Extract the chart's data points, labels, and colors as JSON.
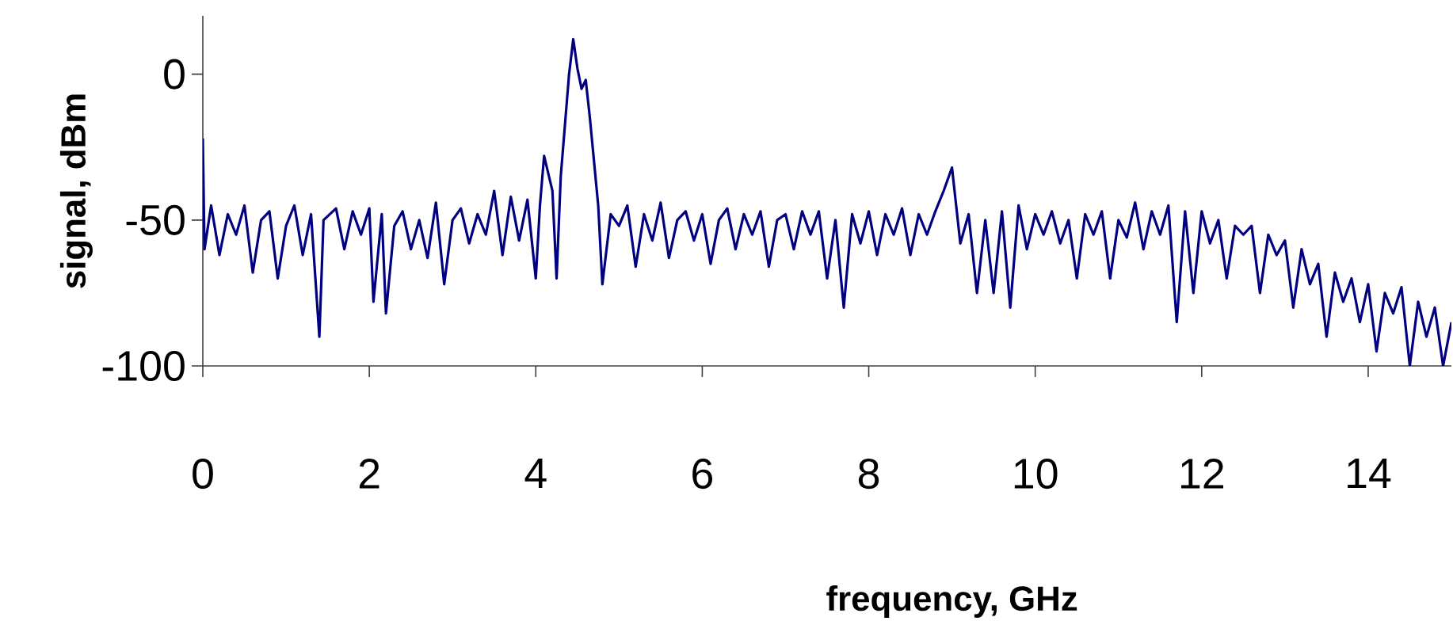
{
  "chart_data": {
    "type": "line",
    "xlabel": "frequency, GHz",
    "ylabel": "signal, dBm",
    "xlim": [
      0,
      15
    ],
    "xticks": [
      0,
      2,
      4,
      6,
      8,
      10,
      12,
      14
    ],
    "ylim": [
      -100,
      20
    ],
    "yticks": [
      -100,
      -50,
      0
    ],
    "marker": "none",
    "line_style": "solid",
    "series": [
      {
        "color": "#000080",
        "x": [
          0,
          0.02,
          0.1,
          0.2,
          0.3,
          0.4,
          0.5,
          0.6,
          0.7,
          0.8,
          0.9,
          1.0,
          1.1,
          1.2,
          1.3,
          1.4,
          1.45,
          1.6,
          1.7,
          1.8,
          1.9,
          2.0,
          2.05,
          2.15,
          2.2,
          2.3,
          2.4,
          2.5,
          2.6,
          2.7,
          2.8,
          2.9,
          3.0,
          3.1,
          3.2,
          3.3,
          3.4,
          3.5,
          3.6,
          3.7,
          3.8,
          3.9,
          4.0,
          4.05,
          4.1,
          4.2,
          4.25,
          4.3,
          4.4,
          4.45,
          4.5,
          4.55,
          4.6,
          4.65,
          4.7,
          4.75,
          4.8,
          4.9,
          5.0,
          5.1,
          5.2,
          5.3,
          5.4,
          5.5,
          5.6,
          5.7,
          5.8,
          5.9,
          6.0,
          6.1,
          6.2,
          6.3,
          6.4,
          6.5,
          6.6,
          6.7,
          6.8,
          6.9,
          7.0,
          7.1,
          7.2,
          7.3,
          7.4,
          7.5,
          7.6,
          7.7,
          7.8,
          7.9,
          8.0,
          8.1,
          8.2,
          8.3,
          8.4,
          8.5,
          8.6,
          8.7,
          8.8,
          8.9,
          9.0,
          9.05,
          9.1,
          9.2,
          9.3,
          9.4,
          9.5,
          9.6,
          9.7,
          9.8,
          9.9,
          10.0,
          10.1,
          10.2,
          10.3,
          10.4,
          10.5,
          10.6,
          10.7,
          10.8,
          10.9,
          11.0,
          11.1,
          11.2,
          11.3,
          11.4,
          11.5,
          11.6,
          11.7,
          11.8,
          11.9,
          12.0,
          12.1,
          12.2,
          12.3,
          12.4,
          12.5,
          12.6,
          12.7,
          12.8,
          12.9,
          13.0,
          13.1,
          13.2,
          13.3,
          13.4,
          13.5,
          13.6,
          13.7,
          13.8,
          13.9,
          14.0,
          14.1,
          14.2,
          14.3,
          14.4,
          14.5,
          14.6,
          14.7,
          14.8,
          14.9,
          15.0
        ],
        "values": [
          -22,
          -60,
          -45,
          -62,
          -48,
          -55,
          -45,
          -68,
          -50,
          -47,
          -70,
          -52,
          -45,
          -62,
          -48,
          -90,
          -50,
          -46,
          -60,
          -47,
          -55,
          -46,
          -78,
          -48,
          -82,
          -52,
          -47,
          -60,
          -50,
          -63,
          -44,
          -72,
          -50,
          -46,
          -58,
          -48,
          -55,
          -40,
          -62,
          -42,
          -57,
          -43,
          -70,
          -45,
          -28,
          -40,
          -70,
          -35,
          0,
          12,
          2,
          -5,
          -2,
          -15,
          -30,
          -45,
          -72,
          -48,
          -52,
          -45,
          -66,
          -48,
          -57,
          -44,
          -63,
          -50,
          -47,
          -57,
          -48,
          -65,
          -50,
          -46,
          -60,
          -48,
          -55,
          -47,
          -66,
          -50,
          -48,
          -60,
          -47,
          -55,
          -47,
          -70,
          -50,
          -80,
          -48,
          -58,
          -47,
          -62,
          -48,
          -55,
          -46,
          -62,
          -48,
          -55,
          -47,
          -40,
          -32,
          -45,
          -58,
          -48,
          -75,
          -50,
          -75,
          -47,
          -80,
          -45,
          -60,
          -48,
          -55,
          -47,
          -58,
          -50,
          -70,
          -48,
          -55,
          -47,
          -70,
          -50,
          -56,
          -44,
          -60,
          -47,
          -55,
          -45,
          -85,
          -47,
          -75,
          -47,
          -58,
          -50,
          -70,
          -52,
          -55,
          -52,
          -75,
          -55,
          -62,
          -57,
          -80,
          -60,
          -72,
          -65,
          -90,
          -68,
          -78,
          -70,
          -85,
          -72,
          -95,
          -75,
          -82,
          -73,
          -100,
          -78,
          -90,
          -80,
          -100,
          -85
        ]
      }
    ]
  }
}
